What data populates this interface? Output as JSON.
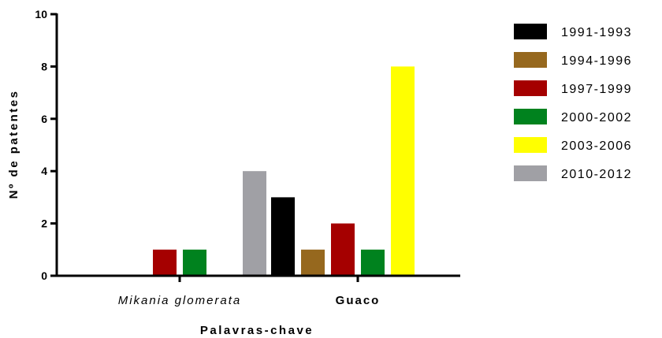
{
  "chart_data": {
    "type": "bar",
    "categories": [
      "Mikania glomerata",
      "Guaco"
    ],
    "category_styles": [
      "italic",
      "bold"
    ],
    "series": [
      {
        "name": "1991-1993",
        "color": "#000000",
        "values": [
          0,
          3
        ]
      },
      {
        "name": "1994-1996",
        "color": "#96681e",
        "values": [
          0,
          1
        ]
      },
      {
        "name": "1997-1999",
        "color": "#a50000",
        "values": [
          1,
          2
        ]
      },
      {
        "name": "2000-2002",
        "color": "#00821e",
        "values": [
          1,
          1
        ]
      },
      {
        "name": "2003-2006",
        "color": "#ffff00",
        "values": [
          0,
          8
        ]
      },
      {
        "name": "2010-2012",
        "color": "#a0a0a5",
        "values": [
          4,
          0
        ]
      }
    ],
    "xlabel": "Palavras-chave",
    "ylabel": "Nº de patentes",
    "ylim": [
      0,
      10
    ],
    "yticks": [
      0,
      2,
      4,
      6,
      8,
      10
    ],
    "grid": false,
    "legend": "right"
  }
}
